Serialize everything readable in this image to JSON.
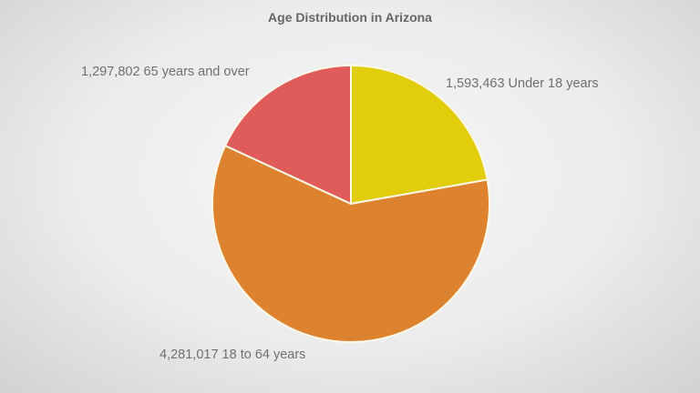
{
  "chart_data": {
    "type": "pie",
    "title": "Age Distribution in Arizona",
    "categories": [
      "Under 18 years",
      "18 to 64 years",
      "65 years and over"
    ],
    "values": [
      1593463,
      4281017,
      1297802
    ],
    "colors": [
      "#e2cd0a",
      "#dd8330",
      "#e05c5a"
    ],
    "labels": [
      "1,593,463 Under 18 years",
      "4,281,017 18 to 64 years",
      "1,297,802 65 years and over"
    ],
    "start_angle_deg": 0,
    "direction": "clockwise",
    "legend": "none"
  }
}
